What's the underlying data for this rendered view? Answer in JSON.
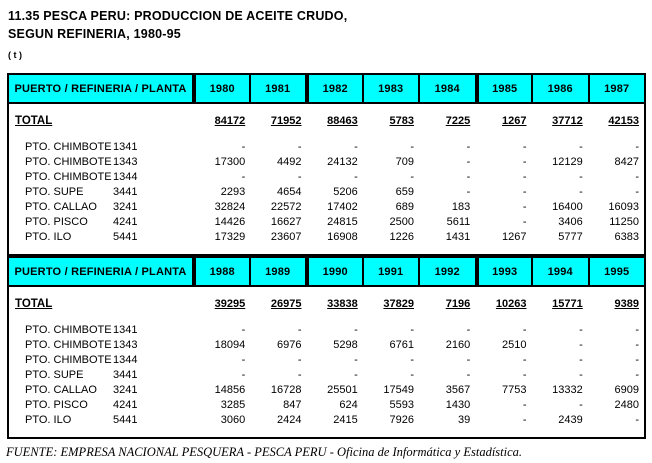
{
  "title": {
    "line1": "11.35  PESCA PERU:  PRODUCCION DE ACEITE CRUDO,",
    "line2": "SEGUN REFINERIA, 1980-95",
    "unit": "( t )"
  },
  "table": {
    "header_label": "PUERTO / REFINERIA / PLANTA",
    "total_label": "TOTAL",
    "sections": [
      {
        "years": [
          "1980",
          "1981",
          "1982",
          "1983",
          "1984",
          "1985",
          "1986",
          "1987"
        ],
        "total": [
          "84172",
          "71952",
          "88463",
          "5783",
          "7225",
          "1267",
          "37712",
          "42153"
        ],
        "rows": [
          {
            "name": "PTO. CHIMBOTE",
            "code": "1341",
            "values": [
              "-",
              "-",
              "-",
              "-",
              "-",
              "-",
              "-",
              "-"
            ]
          },
          {
            "name": "PTO. CHIMBOTE",
            "code": "1343",
            "values": [
              "17300",
              "4492",
              "24132",
              "709",
              "-",
              "-",
              "12129",
              "8427"
            ]
          },
          {
            "name": "PTO. CHIMBOTE",
            "code": "1344",
            "values": [
              "-",
              "-",
              "-",
              "-",
              "-",
              "-",
              "-",
              "-"
            ]
          },
          {
            "name": "PTO. SUPE",
            "code": "3441",
            "values": [
              "2293",
              "4654",
              "5206",
              "659",
              "-",
              "-",
              "-",
              "-"
            ]
          },
          {
            "name": "PTO. CALLAO",
            "code": "3241",
            "values": [
              "32824",
              "22572",
              "17402",
              "689",
              "183",
              "-",
              "16400",
              "16093"
            ]
          },
          {
            "name": "PTO. PISCO",
            "code": "4241",
            "values": [
              "14426",
              "16627",
              "24815",
              "2500",
              "5611",
              "-",
              "3406",
              "11250"
            ]
          },
          {
            "name": "PTO. ILO",
            "code": "5441",
            "values": [
              "17329",
              "23607",
              "16908",
              "1226",
              "1431",
              "1267",
              "5777",
              "6383"
            ]
          }
        ]
      },
      {
        "years": [
          "1988",
          "1989",
          "1990",
          "1991",
          "1992",
          "1993",
          "1994",
          "1995"
        ],
        "total": [
          "39295",
          "26975",
          "33838",
          "37829",
          "7196",
          "10263",
          "15771",
          "9389"
        ],
        "rows": [
          {
            "name": "PTO. CHIMBOTE",
            "code": "1341",
            "values": [
              "-",
              "-",
              "-",
              "-",
              "-",
              "-",
              "-",
              "-"
            ]
          },
          {
            "name": "PTO. CHIMBOTE",
            "code": "1343",
            "values": [
              "18094",
              "6976",
              "5298",
              "6761",
              "2160",
              "2510",
              "-",
              "-"
            ]
          },
          {
            "name": "PTO. CHIMBOTE",
            "code": "1344",
            "values": [
              "-",
              "-",
              "-",
              "-",
              "-",
              "-",
              "-",
              "-"
            ]
          },
          {
            "name": "PTO. SUPE",
            "code": "3441",
            "values": [
              "-",
              "-",
              "-",
              "-",
              "-",
              "-",
              "-",
              "-"
            ]
          },
          {
            "name": "PTO. CALLAO",
            "code": "3241",
            "values": [
              "14856",
              "16728",
              "25501",
              "17549",
              "3567",
              "7753",
              "13332",
              "6909"
            ]
          },
          {
            "name": "PTO. PISCO",
            "code": "4241",
            "values": [
              "3285",
              "847",
              "624",
              "5593",
              "1430",
              "-",
              "-",
              "2480"
            ]
          },
          {
            "name": "PTO. ILO",
            "code": "5441",
            "values": [
              "3060",
              "2424",
              "2415",
              "7926",
              "39",
              "-",
              "2439",
              "-"
            ]
          }
        ]
      }
    ]
  },
  "footer": {
    "source": "FUENTE: EMPRESA NACIONAL PESQUERA - PESCA PERU - Oficina de Informática y Estadística."
  },
  "colors": {
    "header_bg": "#00FFFF",
    "border": "#000000",
    "text": "#000000"
  }
}
